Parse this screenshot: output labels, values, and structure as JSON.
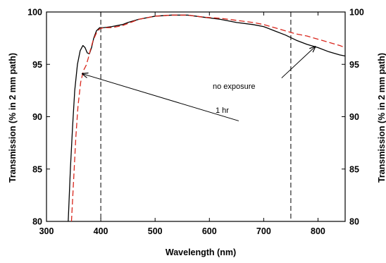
{
  "chart_data": {
    "type": "line",
    "title": "",
    "xlabel": "Wavelength (nm)",
    "ylabel_left": "Transmission (% in 2 mm path)",
    "ylabel_right": "Transmission (% in 2 mm path)",
    "xlim": [
      300,
      850
    ],
    "ylim": [
      80,
      100
    ],
    "xticks": [
      300,
      400,
      500,
      600,
      700,
      800
    ],
    "yticks": [
      80,
      85,
      90,
      95,
      100
    ],
    "grid": false,
    "legend": "none",
    "vertical_dashed_lines": [
      400,
      750
    ],
    "series": [
      {
        "color": "#000000",
        "style": "solid",
        "points": [
          [
            340,
            80
          ],
          [
            344,
            85
          ],
          [
            348,
            89
          ],
          [
            352,
            92.5
          ],
          [
            357,
            95
          ],
          [
            362,
            96.3
          ],
          [
            367,
            96.8
          ],
          [
            371,
            96.6
          ],
          [
            375,
            96.1
          ],
          [
            379,
            96.0
          ],
          [
            383,
            96.6
          ],
          [
            387,
            97.5
          ],
          [
            392,
            98.2
          ],
          [
            398,
            98.5
          ],
          [
            405,
            98.5
          ],
          [
            420,
            98.6
          ],
          [
            440,
            98.8
          ],
          [
            450,
            99.0
          ],
          [
            470,
            99.3
          ],
          [
            500,
            99.6
          ],
          [
            530,
            99.7
          ],
          [
            560,
            99.7
          ],
          [
            590,
            99.5
          ],
          [
            620,
            99.3
          ],
          [
            650,
            99.0
          ],
          [
            680,
            98.8
          ],
          [
            700,
            98.6
          ],
          [
            720,
            98.2
          ],
          [
            740,
            97.8
          ],
          [
            760,
            97.3
          ],
          [
            780,
            96.9
          ],
          [
            800,
            96.6
          ],
          [
            820,
            96.2
          ],
          [
            840,
            95.9
          ],
          [
            850,
            95.8
          ]
        ]
      },
      {
        "color": "#d9261c",
        "style": "dashed",
        "points": [
          [
            346,
            80
          ],
          [
            350,
            84
          ],
          [
            354,
            88
          ],
          [
            358,
            91
          ],
          [
            363,
            93.3
          ],
          [
            368,
            94.4
          ],
          [
            373,
            94.9
          ],
          [
            377,
            95.6
          ],
          [
            381,
            96.4
          ],
          [
            386,
            97.3
          ],
          [
            392,
            98.0
          ],
          [
            398,
            98.4
          ],
          [
            405,
            98.5
          ],
          [
            420,
            98.5
          ],
          [
            440,
            98.7
          ],
          [
            450,
            98.9
          ],
          [
            470,
            99.3
          ],
          [
            500,
            99.6
          ],
          [
            530,
            99.7
          ],
          [
            560,
            99.7
          ],
          [
            590,
            99.5
          ],
          [
            620,
            99.4
          ],
          [
            650,
            99.2
          ],
          [
            680,
            99.0
          ],
          [
            700,
            98.8
          ],
          [
            720,
            98.5
          ],
          [
            740,
            98.2
          ],
          [
            760,
            97.9
          ],
          [
            780,
            97.7
          ],
          [
            800,
            97.4
          ],
          [
            820,
            97.1
          ],
          [
            840,
            96.8
          ],
          [
            850,
            96.6
          ]
        ]
      }
    ],
    "annotations": [
      {
        "text": "no exposure",
        "label_at": [
          358,
          93.0
        ],
        "arrow_from": [
          733,
          93.7
        ],
        "arrow_to": [
          795,
          96.7
        ]
      },
      {
        "text": "1 hr",
        "label_at": [
          683,
          89.1
        ],
        "arrow_from": [
          654,
          89.6
        ],
        "arrow_to": [
          366,
          94.1
        ]
      }
    ]
  }
}
